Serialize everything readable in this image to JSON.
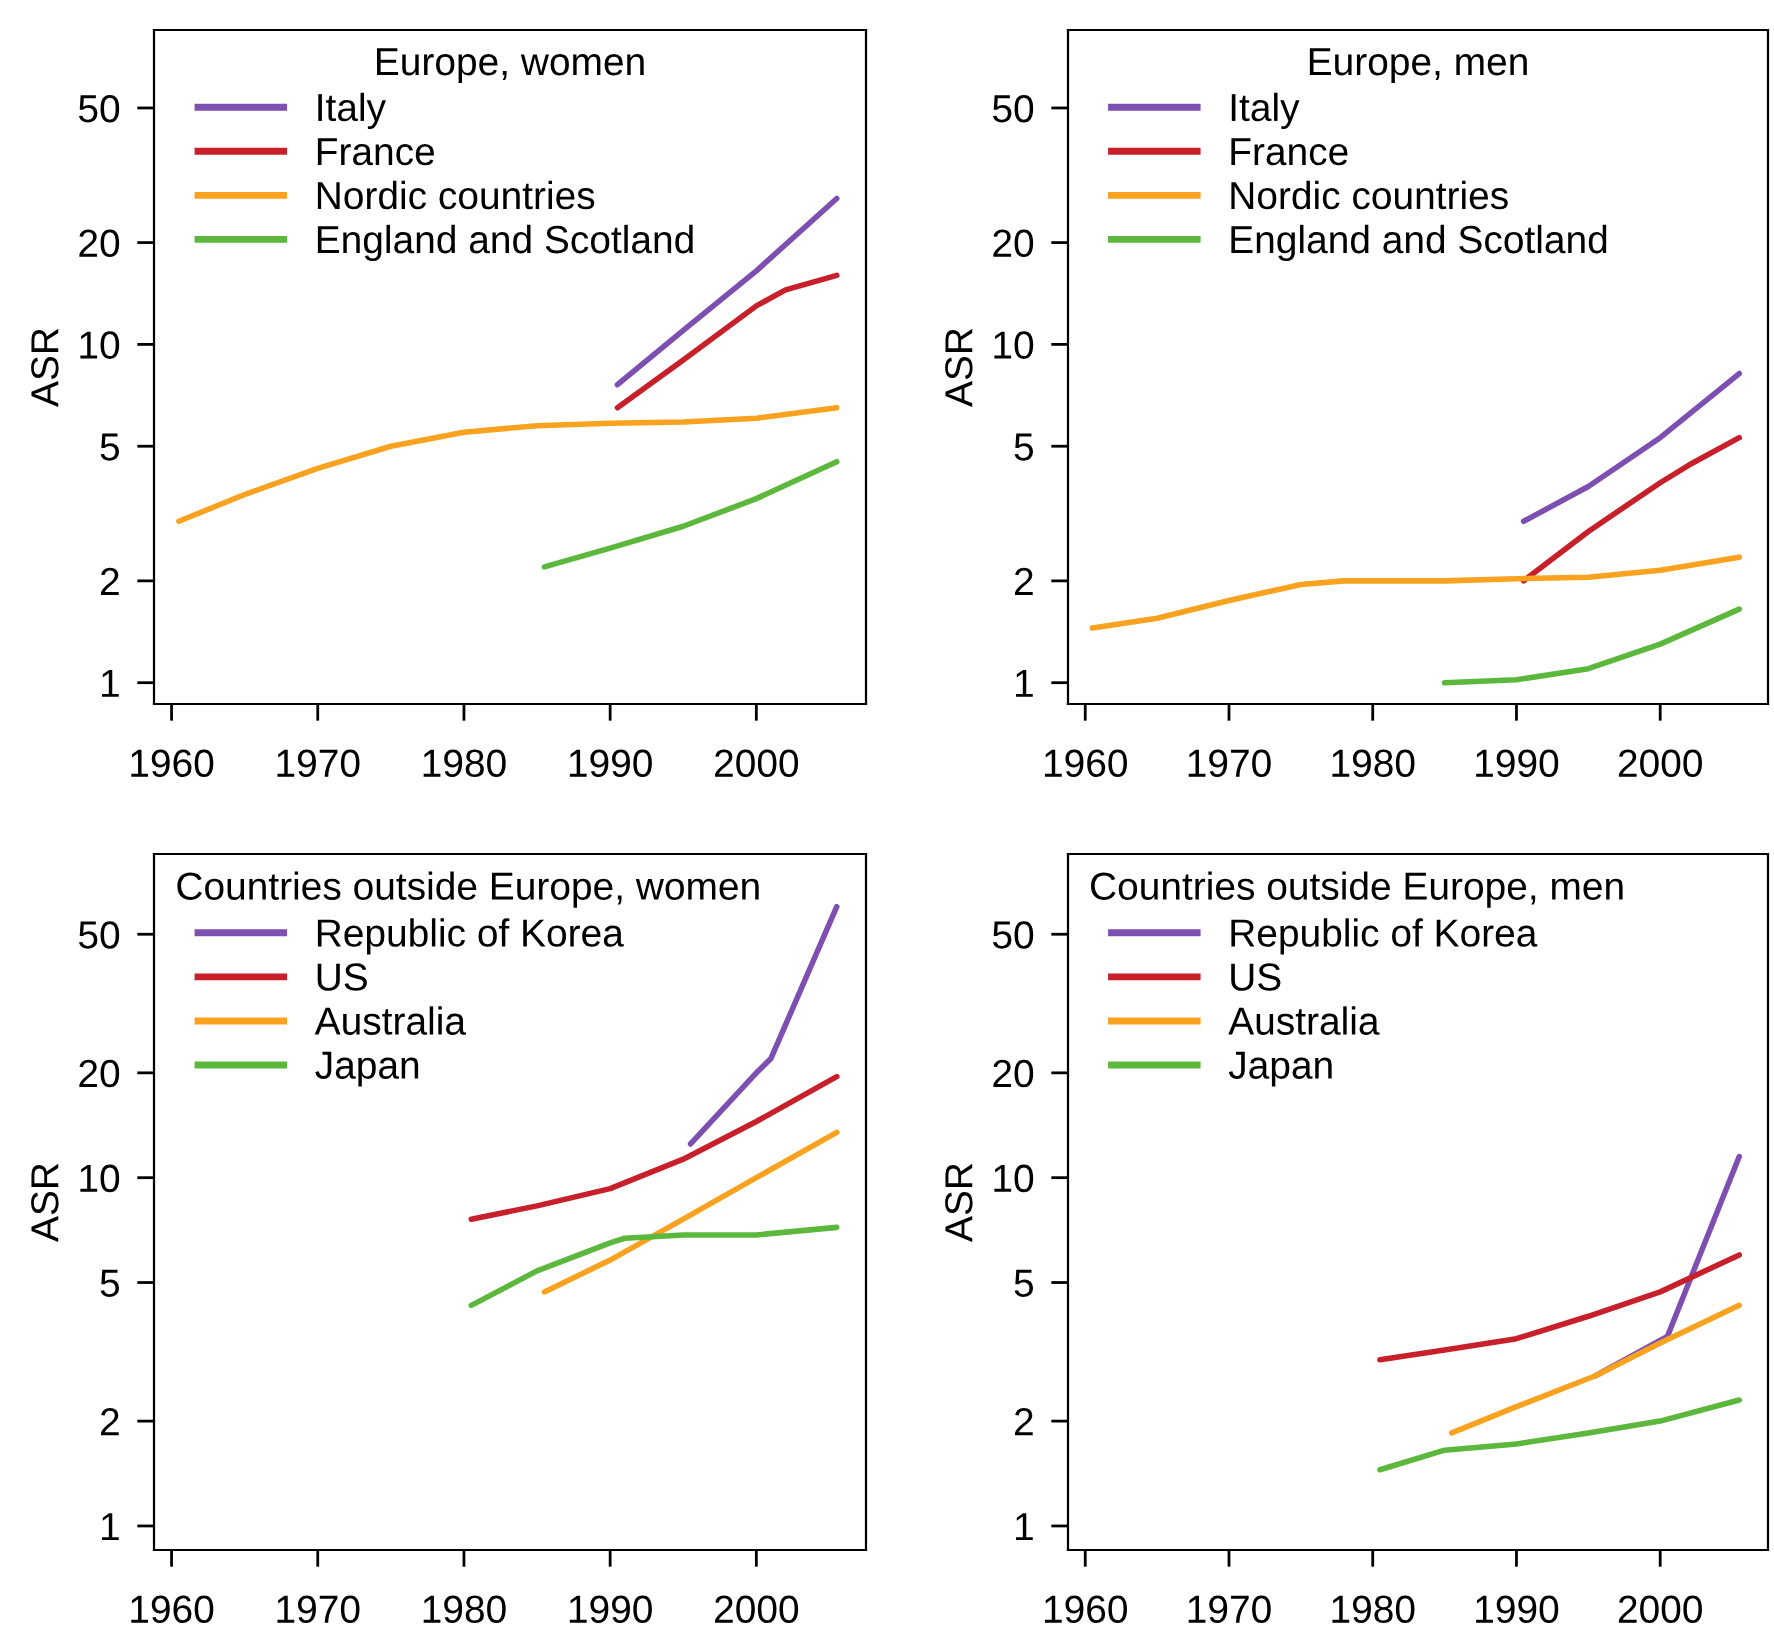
{
  "chart_data": [
    {
      "type": "line",
      "title": "Europe, women",
      "ylabel": "ASR",
      "log": "y",
      "legend": "top left",
      "xlim": [
        1958.8,
        2007.5
      ],
      "xticks": [
        1960,
        1970,
        1980,
        1990,
        2000
      ],
      "ylim": [
        0.865,
        85
      ],
      "yticks": [
        1,
        2,
        5,
        10,
        20,
        50
      ],
      "grid": false,
      "series": [
        {
          "name": "Italy",
          "color": "#7d4fb0",
          "x": [
            1990.5,
            1995,
            2000,
            2005.5
          ],
          "values": [
            7.6,
            11,
            16.5,
            27
          ]
        },
        {
          "name": "France",
          "color": "#c8202a",
          "x": [
            1990.5,
            1995,
            2000,
            2002,
            2005.5
          ],
          "values": [
            6.5,
            9,
            13,
            14.5,
            16
          ]
        },
        {
          "name": "Nordic countries",
          "color": "#f9a21f",
          "x": [
            1960.5,
            1965,
            1970,
            1975,
            1980,
            1985,
            1990,
            1995,
            2000,
            2005.5
          ],
          "values": [
            3.0,
            3.6,
            4.3,
            5.0,
            5.5,
            5.75,
            5.85,
            5.9,
            6.05,
            6.5
          ]
        },
        {
          "name": "England and Scotland",
          "color": "#5cb83c",
          "x": [
            1985.5,
            1990,
            1995,
            2000,
            2005.5
          ],
          "values": [
            2.2,
            2.5,
            2.9,
            3.5,
            4.5
          ]
        }
      ]
    },
    {
      "type": "line",
      "title": "Europe, men",
      "ylabel": "ASR",
      "log": "y",
      "legend": "top left",
      "xlim": [
        1958.8,
        2007.5
      ],
      "xticks": [
        1960,
        1970,
        1980,
        1990,
        2000
      ],
      "ylim": [
        0.865,
        85
      ],
      "yticks": [
        1,
        2,
        5,
        10,
        20,
        50
      ],
      "grid": false,
      "series": [
        {
          "name": "Italy",
          "color": "#7d4fb0",
          "x": [
            1990.5,
            1995,
            2000,
            2005.5
          ],
          "values": [
            3.0,
            3.8,
            5.3,
            8.2
          ]
        },
        {
          "name": "France",
          "color": "#c8202a",
          "x": [
            1990.5,
            1995,
            2000,
            2002,
            2005.5
          ],
          "values": [
            2.0,
            2.8,
            3.9,
            4.4,
            5.3
          ]
        },
        {
          "name": "Nordic countries",
          "color": "#f9a21f",
          "x": [
            1960.5,
            1965,
            1970,
            1975,
            1978,
            1985,
            1990,
            1995,
            2000,
            2005.5
          ],
          "values": [
            1.45,
            1.55,
            1.75,
            1.95,
            2.0,
            2.0,
            2.03,
            2.05,
            2.15,
            2.35
          ]
        },
        {
          "name": "England and Scotland",
          "color": "#5cb83c",
          "x": [
            1985,
            1990,
            1995,
            2000,
            2005.5
          ],
          "values": [
            1.0,
            1.02,
            1.1,
            1.3,
            1.65
          ]
        }
      ]
    },
    {
      "type": "line",
      "title": "Countries outside Europe, women",
      "ylabel": "ASR",
      "log": "y",
      "legend": "top left",
      "xlim": [
        1958.8,
        2007.5
      ],
      "xticks": [
        1960,
        1970,
        1980,
        1990,
        2000
      ],
      "ylim": [
        0.853,
        85
      ],
      "yticks": [
        1,
        2,
        5,
        10,
        20,
        50
      ],
      "grid": false,
      "series": [
        {
          "name": "Republic of Korea",
          "color": "#7d4fb0",
          "x": [
            1995.5,
            2000,
            2001,
            2005.5
          ],
          "values": [
            12.5,
            20,
            22,
            60
          ]
        },
        {
          "name": "US",
          "color": "#c8202a",
          "x": [
            1980.5,
            1985,
            1990,
            1995,
            2000,
            2005.5
          ],
          "values": [
            7.6,
            8.3,
            9.3,
            11.3,
            14.5,
            19.5
          ]
        },
        {
          "name": "Australia",
          "color": "#f9a21f",
          "x": [
            1985.5,
            1990,
            1995,
            2000,
            2005.5
          ],
          "values": [
            4.7,
            5.8,
            7.6,
            10,
            13.5
          ]
        },
        {
          "name": "Japan",
          "color": "#5cb83c",
          "x": [
            1980.5,
            1985,
            1990,
            1991,
            1995,
            2000,
            2005.5
          ],
          "values": [
            4.3,
            5.4,
            6.5,
            6.7,
            6.85,
            6.85,
            7.2
          ]
        }
      ]
    },
    {
      "type": "line",
      "title": "Countries outside Europe, men",
      "ylabel": "ASR",
      "log": "y",
      "legend": "top left",
      "xlim": [
        1958.8,
        2007.5
      ],
      "xticks": [
        1960,
        1970,
        1980,
        1990,
        2000
      ],
      "ylim": [
        0.853,
        85
      ],
      "yticks": [
        1,
        2,
        5,
        10,
        20,
        50
      ],
      "grid": false,
      "series": [
        {
          "name": "Republic of Korea",
          "color": "#7d4fb0",
          "x": [
            1995.5,
            2000.5,
            2005.5
          ],
          "values": [
            2.7,
            3.5,
            11.5
          ]
        },
        {
          "name": "US",
          "color": "#c8202a",
          "x": [
            1980.5,
            1985,
            1990,
            1995,
            2000,
            2005.5
          ],
          "values": [
            3.0,
            3.2,
            3.45,
            4.0,
            4.7,
            6.0
          ]
        },
        {
          "name": "Australia",
          "color": "#f9a21f",
          "x": [
            1985.5,
            1990,
            1995.5,
            2000,
            2005.5
          ],
          "values": [
            1.85,
            2.2,
            2.7,
            3.35,
            4.3
          ]
        },
        {
          "name": "Japan",
          "color": "#5cb83c",
          "x": [
            1980.5,
            1985,
            1990,
            1995,
            2000,
            2005.5
          ],
          "values": [
            1.45,
            1.65,
            1.72,
            1.85,
            2.0,
            2.3
          ]
        }
      ]
    }
  ]
}
